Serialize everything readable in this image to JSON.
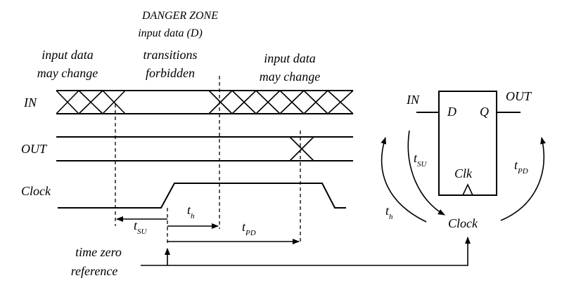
{
  "labels": {
    "danger_zone_title": "DANGER ZONE",
    "danger_zone_sub": "input data (D)",
    "left_change_line1": "input data",
    "left_change_line2": "may change",
    "forbidden_line1": "transitions",
    "forbidden_line2": "forbidden",
    "right_change_line1": "input data",
    "right_change_line2": "may change",
    "signal_in": "IN",
    "signal_out": "OUT",
    "signal_clock": "Clock",
    "t_su_main": "t",
    "t_su_sub": "SU",
    "t_h_main": "t",
    "t_h_sub": "h",
    "t_pd_main": "t",
    "t_pd_sub": "PD",
    "time_zero_line1": "time zero",
    "time_zero_line2": "reference"
  },
  "flipflop": {
    "in_label": "IN",
    "out_label": "OUT",
    "d_label": "D",
    "q_label": "Q",
    "clk_label": "Clk",
    "clock_label": "Clock",
    "t_su_main": "t",
    "t_su_sub": "SU",
    "t_h_main": "t",
    "t_h_sub": "h",
    "t_pd_main": "t",
    "t_pd_sub": "PD"
  }
}
